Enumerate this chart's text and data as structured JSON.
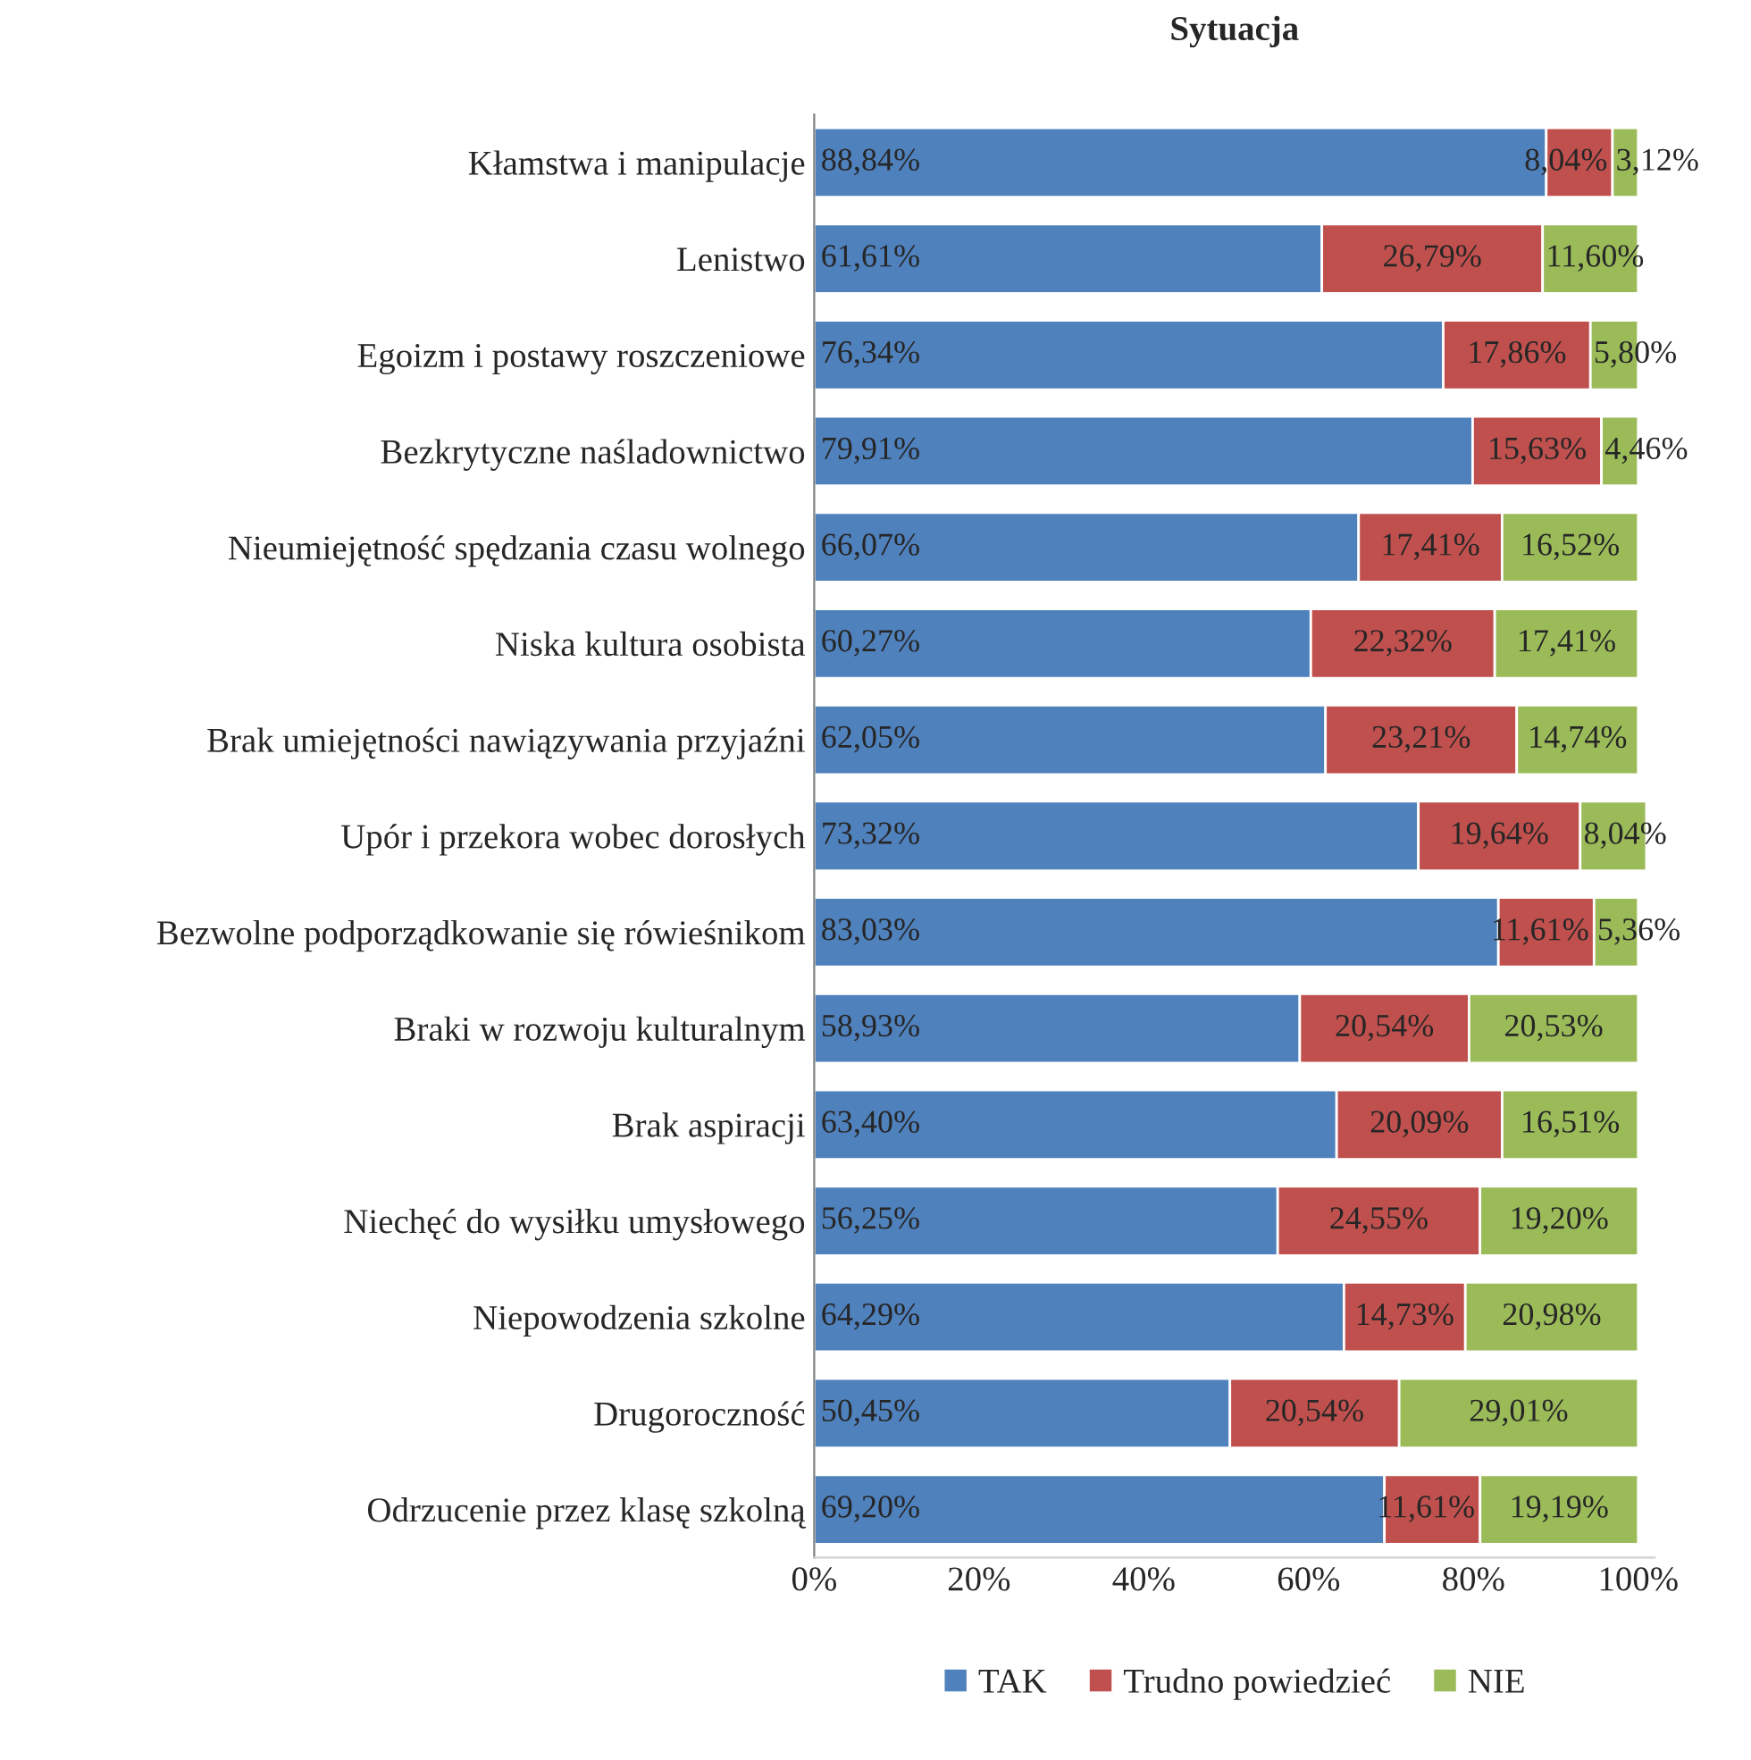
{
  "chart_data": {
    "type": "bar",
    "orientation": "horizontal",
    "stacked": true,
    "title": "Sytuacja",
    "categories": [
      "Kłamstwa i manipulacje",
      "Lenistwo",
      "Egoizm i postawy roszczeniowe",
      "Bezkrytyczne naśladownictwo",
      "Nieumiejętność spędzania czasu wolnego",
      "Niska kultura osobista",
      "Brak umiejętności nawiązywania przyjaźni",
      "Upór i przekora wobec dorosłych",
      "Bezwolne podporządkowanie się rówieśnikom",
      "Braki w rozwoju kulturalnym",
      "Brak aspiracji",
      "Niechęć do wysiłku umysłowego",
      "Niepowodzenia szkolne",
      "Drugoroczność",
      "Odrzucenie przez klasę szkolną"
    ],
    "series": [
      {
        "name": "TAK",
        "color": "#4f81bd",
        "values": [
          88.84,
          61.61,
          76.34,
          79.91,
          66.07,
          60.27,
          62.05,
          73.32,
          83.03,
          58.93,
          63.4,
          56.25,
          64.29,
          50.45,
          69.2
        ],
        "value_labels": [
          "88,84%",
          "61,61%",
          "76,34%",
          "79,91%",
          "66,07%",
          "60,27%",
          "62,05%",
          "73,32%",
          "83,03%",
          "58,93%",
          "63,40%",
          "56,25%",
          "64,29%",
          "50,45%",
          "69,20%"
        ]
      },
      {
        "name": "Trudno powiedzieć",
        "color": "#c0504d",
        "values": [
          8.04,
          26.79,
          17.86,
          15.63,
          17.41,
          22.32,
          23.21,
          19.64,
          11.61,
          20.54,
          20.09,
          24.55,
          14.73,
          20.54,
          11.61
        ],
        "value_labels": [
          "8,04%",
          "26,79%",
          "17,86%",
          "15,63%",
          "17,41%",
          "22,32%",
          "23,21%",
          "19,64%",
          "11,61%",
          "20,54%",
          "20,09%",
          "24,55%",
          "14,73%",
          "20,54%",
          "11,61%"
        ]
      },
      {
        "name": "NIE",
        "color": "#9bbb59",
        "values": [
          3.12,
          11.6,
          5.8,
          4.46,
          16.52,
          17.41,
          14.74,
          8.04,
          5.36,
          20.53,
          16.51,
          19.2,
          20.98,
          29.01,
          19.19
        ],
        "value_labels": [
          "3,12%",
          "11,60%",
          "5,80%",
          "4,46%",
          "16,52%",
          "17,41%",
          "14,74%",
          "8,04%",
          "5,36%",
          "20,53%",
          "16,51%",
          "19,20%",
          "20,98%",
          "29,01%",
          "19,19%"
        ]
      }
    ],
    "xlim": [
      0,
      102
    ],
    "xticks": [
      {
        "value": 0,
        "label": "0%"
      },
      {
        "value": 20,
        "label": "20%"
      },
      {
        "value": 40,
        "label": "40%"
      },
      {
        "value": 60,
        "label": "60%"
      },
      {
        "value": 80,
        "label": "80%"
      },
      {
        "value": 100,
        "label": "100%"
      }
    ],
    "legend": "bottom",
    "grid": false
  }
}
